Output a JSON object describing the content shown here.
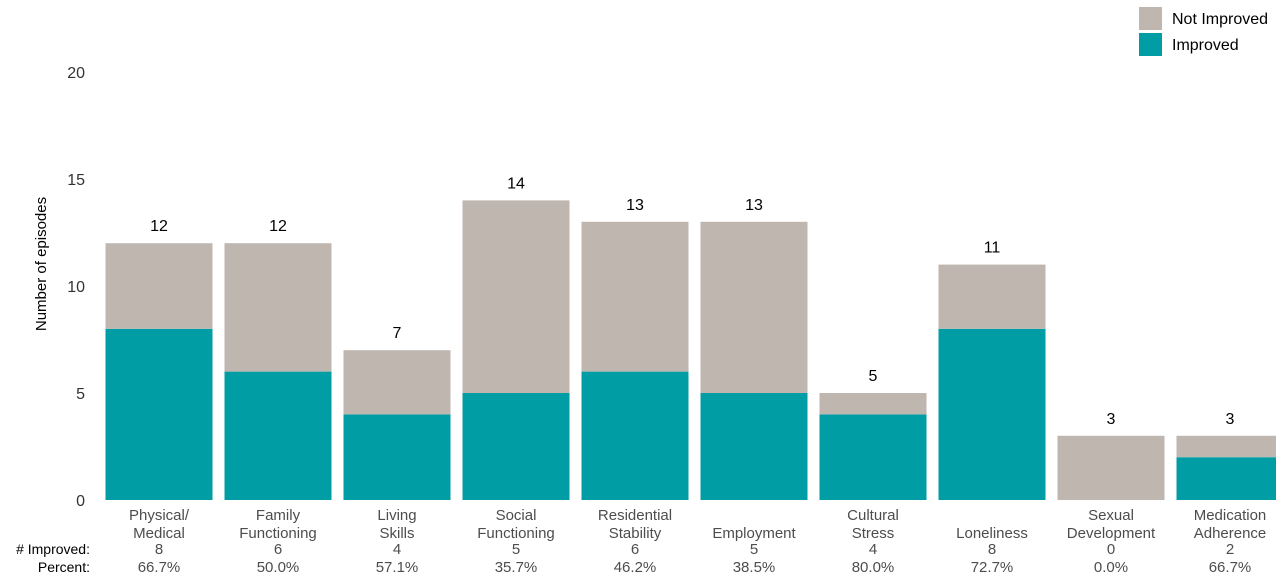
{
  "colors": {
    "improved": "#009DA5",
    "not_improved": "#BFB6AF"
  },
  "chart_data": {
    "type": "bar",
    "stacked": true,
    "ylabel": "Number of episodes",
    "ylim": [
      0,
      20
    ],
    "yticks": [
      0,
      5,
      10,
      15,
      20
    ],
    "grid": false,
    "legend_position": "top-right",
    "categories": [
      [
        "Physical/",
        "Medical"
      ],
      [
        "Family",
        "Functioning"
      ],
      [
        "Living",
        "Skills"
      ],
      [
        "Social",
        "Functioning"
      ],
      [
        "Residential",
        "Stability"
      ],
      [
        "Employment"
      ],
      [
        "Cultural",
        "Stress"
      ],
      [
        "Loneliness"
      ],
      [
        "Sexual",
        "Development"
      ],
      [
        "Medication",
        "Adherence"
      ]
    ],
    "series": [
      {
        "name": "Improved",
        "values": [
          8,
          6,
          4,
          5,
          6,
          5,
          4,
          8,
          0,
          2
        ]
      },
      {
        "name": "Not Improved",
        "values": [
          4,
          6,
          3,
          9,
          7,
          8,
          1,
          3,
          3,
          1
        ]
      }
    ],
    "totals": [
      12,
      12,
      7,
      14,
      13,
      13,
      5,
      11,
      3,
      3
    ],
    "table_rows": [
      {
        "header": "# Improved:",
        "values": [
          "8",
          "6",
          "4",
          "5",
          "6",
          "5",
          "4",
          "8",
          "0",
          "2"
        ]
      },
      {
        "header": "Percent:",
        "values": [
          "66.7%",
          "50.0%",
          "57.1%",
          "35.7%",
          "46.2%",
          "38.5%",
          "80.0%",
          "72.7%",
          "0.0%",
          "66.7%"
        ]
      }
    ]
  }
}
